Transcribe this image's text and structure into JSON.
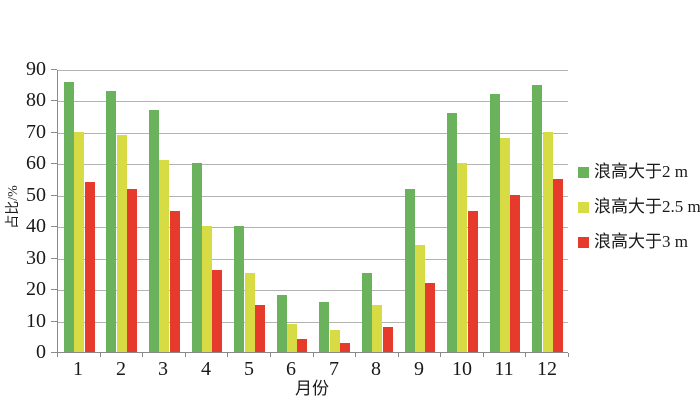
{
  "chart_data": {
    "type": "bar",
    "title": "",
    "xlabel": "月份",
    "ylabel": "占比/%",
    "ylim": [
      0,
      90
    ],
    "ytick_step": 10,
    "yticks": [
      0,
      10,
      20,
      30,
      40,
      50,
      60,
      70,
      80,
      90
    ],
    "grid": true,
    "legend_position": "right",
    "categories": [
      "1",
      "2",
      "3",
      "4",
      "5",
      "6",
      "7",
      "8",
      "9",
      "10",
      "11",
      "12"
    ],
    "series": [
      {
        "name": "浪高大于2 m",
        "color": "#6bb25c",
        "values": [
          86,
          83,
          77,
          60,
          40,
          18,
          16,
          25,
          52,
          76,
          82,
          85
        ]
      },
      {
        "name": "浪高大于2.5 m",
        "color": "#d8dc44",
        "values": [
          70,
          69,
          61,
          40,
          25,
          9,
          7,
          15,
          34,
          60,
          68,
          70
        ]
      },
      {
        "name": "浪高大于3 m",
        "color": "#e63a2c",
        "values": [
          54,
          52,
          45,
          26,
          15,
          4,
          3,
          8,
          22,
          45,
          50,
          55
        ]
      }
    ],
    "colors": {
      "axis": "#8a8a8a",
      "gridline": "#b3b3b3",
      "text": "#1a1a1a",
      "background": "#ffffff"
    }
  }
}
